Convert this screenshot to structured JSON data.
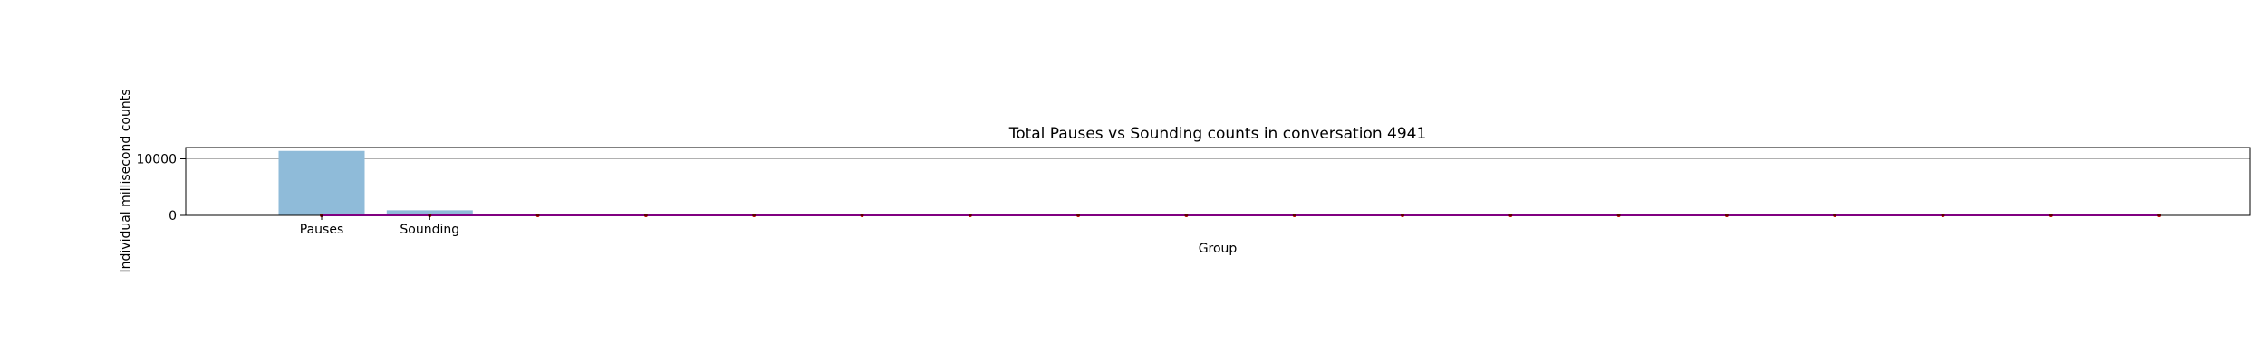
{
  "chart_data": {
    "type": "bar",
    "title": "Total Pauses vs Sounding counts in conversation 4941",
    "xlabel": "Group",
    "ylabel": "Individual millisecond counts",
    "categories": [
      "Pauses",
      "Sounding"
    ],
    "values": [
      11400,
      900
    ],
    "ylim": [
      0,
      12000
    ],
    "yticks": [
      0,
      10000
    ],
    "ytick_labels": [
      "0",
      "10000"
    ],
    "grid": "horizontal",
    "bar_color": "#8fbbd9",
    "line_color": "#ff00ff",
    "marker_color": "#c00000",
    "zero_line_points": 18
  }
}
